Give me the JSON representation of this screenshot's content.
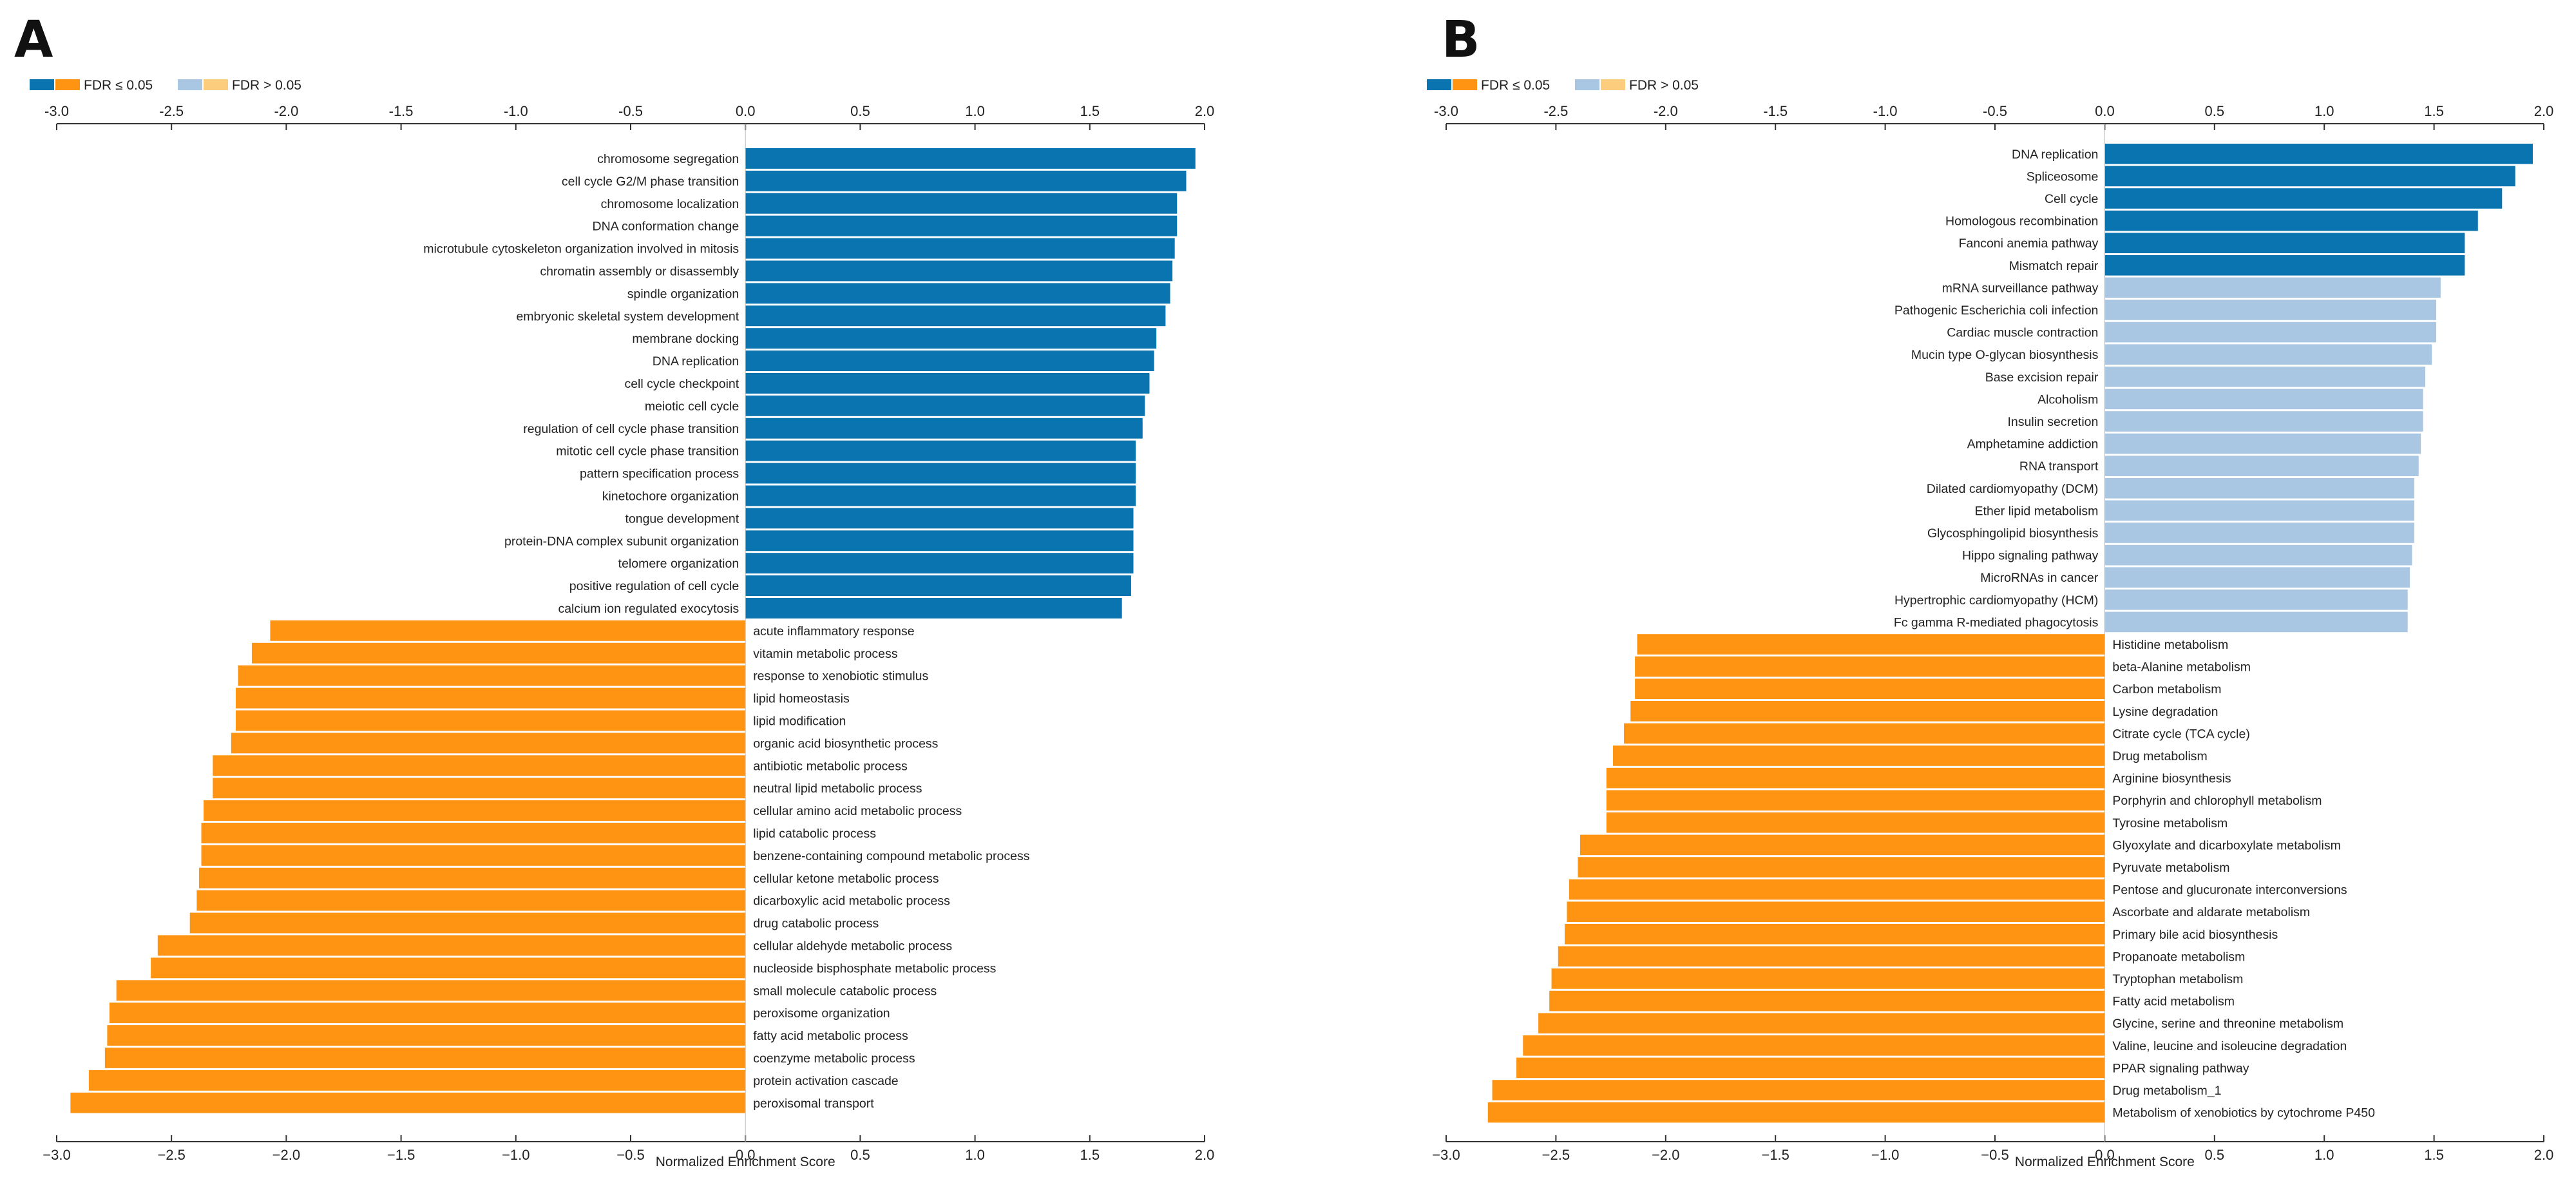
{
  "colors": {
    "fdr_sig_blue": "#0a74b0",
    "fdr_sig_orange": "#ff9412",
    "fdr_ns_blue": "#a9c6e2",
    "fdr_ns_orange": "#fdcd7e",
    "axis": "#333333",
    "text": "#222222"
  },
  "chart_data": [
    {
      "type": "bar",
      "orientation": "horizontal",
      "panel_label": "A",
      "legend": [
        {
          "label": "FDR ≤ 0.05",
          "colors": [
            "#0a74b0",
            "#ff9412"
          ]
        },
        {
          "label": "FDR > 0.05",
          "colors": [
            "#a9c6e2",
            "#fdcd7e"
          ]
        }
      ],
      "legend_position": "top-left",
      "xlabel": "Normalized Enrichment Score",
      "xlim": [
        -3.0,
        2.0
      ],
      "top_ticks": [
        "-3.0",
        "-2.5",
        "-2.0",
        "-1.5",
        "-1.0",
        "-0.5",
        "0.0",
        "0.5",
        "1.0",
        "1.5",
        "2.0"
      ],
      "bottom_ticks": [
        "−3.0",
        "−2.5",
        "−2.0",
        "−1.5",
        "−1.0",
        "−0.5",
        "0.0",
        "0.5",
        "1.0",
        "1.5",
        "2.0"
      ],
      "categories": [
        "chromosome segregation",
        "cell cycle G2/M phase transition",
        "chromosome localization",
        "DNA conformation change",
        "microtubule cytoskeleton organization involved in mitosis",
        "chromatin assembly or disassembly",
        "spindle organization",
        "embryonic skeletal system development",
        "membrane docking",
        "DNA replication",
        "cell cycle checkpoint",
        "meiotic cell cycle",
        "regulation of cell cycle phase transition",
        "mitotic cell cycle phase transition",
        "pattern specification process",
        "kinetochore organization",
        "tongue development",
        "protein-DNA complex subunit organization",
        "telomere organization",
        "positive regulation of cell cycle",
        "calcium ion regulated exocytosis",
        "acute inflammatory response",
        "vitamin metabolic process",
        "response to xenobiotic stimulus",
        "lipid homeostasis",
        "lipid modification",
        "organic acid biosynthetic process",
        "antibiotic metabolic process",
        "neutral lipid metabolic process",
        "cellular amino acid metabolic process",
        "lipid catabolic process",
        "benzene-containing compound metabolic process",
        "cellular ketone metabolic process",
        "dicarboxylic acid metabolic process",
        "drug catabolic process",
        "cellular aldehyde metabolic process",
        "nucleoside bisphosphate metabolic process",
        "small molecule catabolic process",
        "peroxisome organization",
        "fatty acid metabolic process",
        "coenzyme metabolic process",
        "protein activation cascade",
        "peroxisomal transport"
      ],
      "values": [
        1.96,
        1.92,
        1.88,
        1.88,
        1.87,
        1.86,
        1.85,
        1.83,
        1.79,
        1.78,
        1.76,
        1.74,
        1.73,
        1.7,
        1.7,
        1.7,
        1.69,
        1.69,
        1.69,
        1.68,
        1.64,
        -2.07,
        -2.15,
        -2.21,
        -2.22,
        -2.22,
        -2.24,
        -2.32,
        -2.32,
        -2.36,
        -2.37,
        -2.37,
        -2.38,
        -2.39,
        -2.42,
        -2.56,
        -2.59,
        -2.74,
        -2.77,
        -2.78,
        -2.79,
        -2.86,
        -2.94
      ],
      "fdr_significant": [
        true,
        true,
        true,
        true,
        true,
        true,
        true,
        true,
        true,
        true,
        true,
        true,
        true,
        true,
        true,
        true,
        true,
        true,
        true,
        true,
        true,
        true,
        true,
        true,
        true,
        true,
        true,
        true,
        true,
        true,
        true,
        true,
        true,
        true,
        true,
        true,
        true,
        true,
        true,
        true,
        true,
        true,
        true
      ]
    },
    {
      "type": "bar",
      "orientation": "horizontal",
      "panel_label": "B",
      "legend": [
        {
          "label": "FDR ≤ 0.05",
          "colors": [
            "#0a74b0",
            "#ff9412"
          ]
        },
        {
          "label": "FDR > 0.05",
          "colors": [
            "#a9c6e2",
            "#fdcd7e"
          ]
        }
      ],
      "legend_position": "top-left",
      "xlabel": "Normalized Enrichment Score",
      "xlim": [
        -3.0,
        2.0
      ],
      "top_ticks": [
        "-3.0",
        "-2.5",
        "-2.0",
        "-1.5",
        "-1.0",
        "-0.5",
        "0.0",
        "0.5",
        "1.0",
        "1.5",
        "2.0"
      ],
      "bottom_ticks": [
        "−3.0",
        "−2.5",
        "−2.0",
        "−1.5",
        "−1.0",
        "−0.5",
        "0.0",
        "0.5",
        "1.0",
        "1.5",
        "2.0"
      ],
      "categories": [
        "DNA replication",
        "Spliceosome",
        "Cell cycle",
        "Homologous recombination",
        "Fanconi anemia pathway",
        "Mismatch repair",
        "mRNA surveillance pathway",
        "Pathogenic Escherichia coli infection",
        "Cardiac muscle contraction",
        "Mucin type O-glycan biosynthesis",
        "Base excision repair",
        "Alcoholism",
        "Insulin secretion",
        "Amphetamine addiction",
        "RNA transport",
        "Dilated cardiomyopathy (DCM)",
        "Ether lipid metabolism",
        "Glycosphingolipid biosynthesis",
        "Hippo signaling pathway",
        "MicroRNAs in cancer",
        "Hypertrophic cardiomyopathy (HCM)",
        "Fc gamma R-mediated phagocytosis",
        "Histidine metabolism",
        "beta-Alanine metabolism",
        "Carbon metabolism",
        "Lysine degradation",
        "Citrate cycle (TCA cycle)",
        "Drug metabolism",
        "Arginine biosynthesis",
        "Porphyrin and chlorophyll metabolism",
        "Tyrosine metabolism",
        "Glyoxylate and dicarboxylate metabolism",
        "Pyruvate metabolism",
        "Pentose and glucuronate interconversions",
        "Ascorbate and aldarate metabolism",
        "Primary bile acid biosynthesis",
        "Propanoate metabolism",
        "Tryptophan metabolism",
        "Fatty acid metabolism",
        "Glycine, serine and threonine metabolism",
        "Valine, leucine and isoleucine degradation",
        "PPAR signaling pathway",
        "Drug metabolism_1",
        "Metabolism of xenobiotics by cytochrome P450"
      ],
      "values": [
        1.95,
        1.87,
        1.81,
        1.7,
        1.64,
        1.64,
        1.53,
        1.51,
        1.51,
        1.49,
        1.46,
        1.45,
        1.45,
        1.44,
        1.43,
        1.41,
        1.41,
        1.41,
        1.4,
        1.39,
        1.38,
        1.38,
        -2.13,
        -2.14,
        -2.14,
        -2.16,
        -2.19,
        -2.24,
        -2.27,
        -2.27,
        -2.27,
        -2.39,
        -2.4,
        -2.44,
        -2.45,
        -2.46,
        -2.49,
        -2.52,
        -2.53,
        -2.58,
        -2.65,
        -2.68,
        -2.79,
        -2.81
      ],
      "fdr_significant": [
        true,
        true,
        true,
        true,
        true,
        true,
        false,
        false,
        false,
        false,
        false,
        false,
        false,
        false,
        false,
        false,
        false,
        false,
        false,
        false,
        false,
        false,
        true,
        true,
        true,
        true,
        true,
        true,
        true,
        true,
        true,
        true,
        true,
        true,
        true,
        true,
        true,
        true,
        true,
        true,
        true,
        true,
        true,
        true
      ]
    }
  ]
}
